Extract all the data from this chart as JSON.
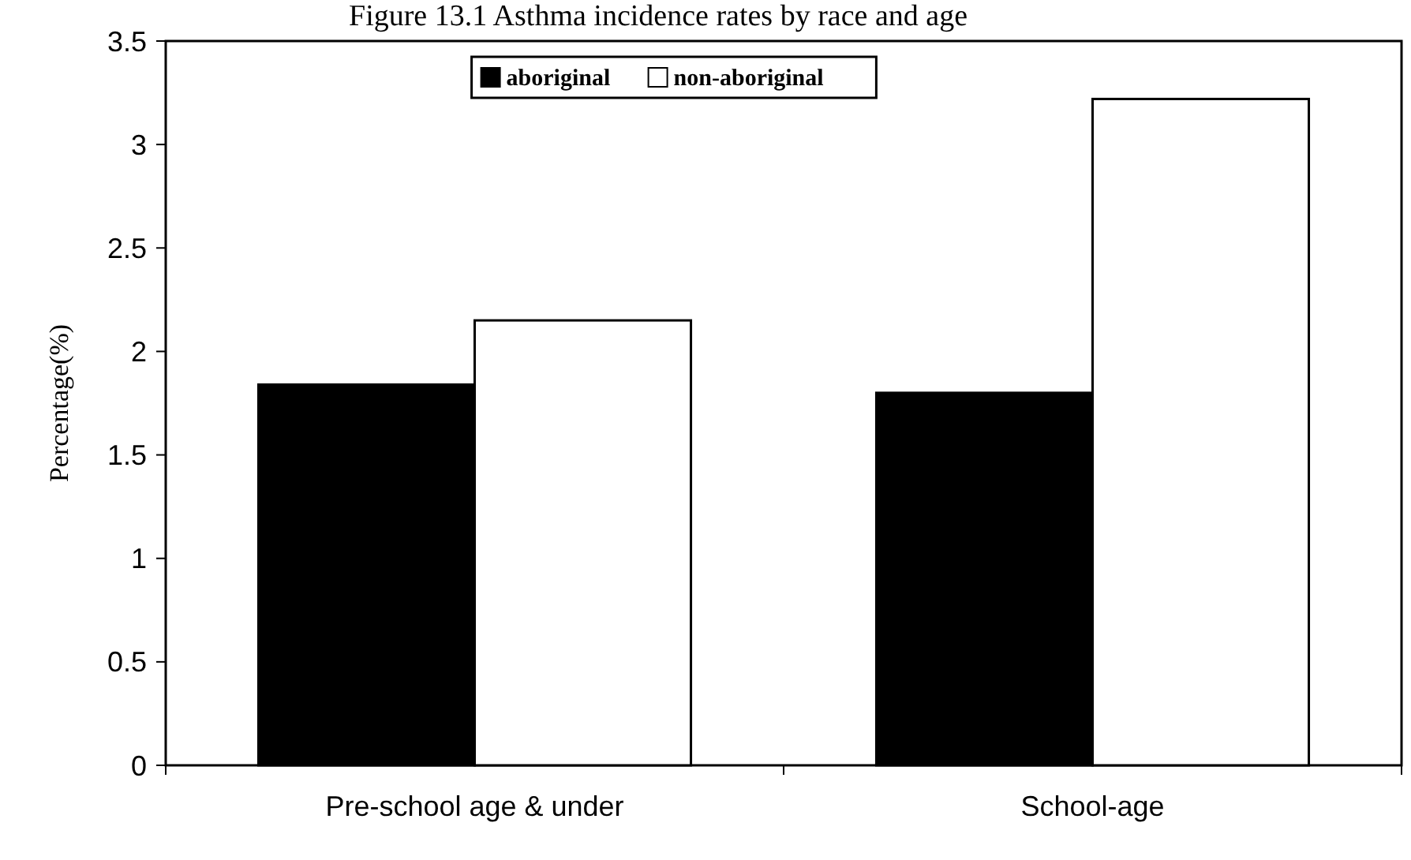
{
  "chart_data": {
    "type": "bar",
    "title": "Figure 13.1 Asthma incidence rates by race and age",
    "ylabel": "Percentage(%)",
    "categories": [
      "Pre-school age & under",
      "School-age"
    ],
    "series": [
      {
        "name": "aboriginal",
        "color": "#000000",
        "values": [
          1.84,
          1.8
        ]
      },
      {
        "name": "non-aboriginal",
        "color": "#ffffff",
        "values": [
          2.15,
          3.22
        ]
      }
    ],
    "ylim": [
      0,
      3.5
    ],
    "yticks": [
      0,
      {
        "value": 0.5,
        "label": "0.5"
      },
      1,
      {
        "value": 1.5,
        "label": "1.5"
      },
      2,
      {
        "value": 2.5,
        "label": "2.5"
      },
      3,
      {
        "value": 3.5,
        "label": "3.5"
      }
    ],
    "grid": false,
    "legend": "top"
  }
}
